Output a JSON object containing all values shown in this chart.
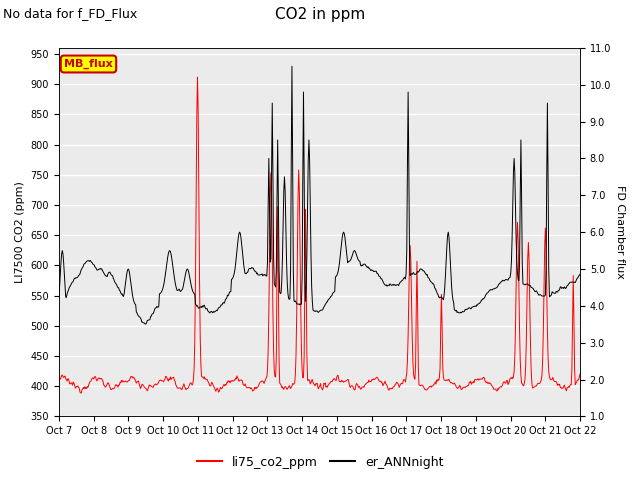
{
  "title": "CO2 in ppm",
  "subtitle": "No data for f_FD_Flux",
  "ylabel_left": "LI7500 CO2 (ppm)",
  "ylabel_right": "FD Chamber flux",
  "ylim_left": [
    350,
    960
  ],
  "ylim_right": [
    1.0,
    11.0
  ],
  "yticks_left": [
    350,
    400,
    450,
    500,
    550,
    600,
    650,
    700,
    750,
    800,
    850,
    900,
    950
  ],
  "yticks_right": [
    1.0,
    2.0,
    3.0,
    4.0,
    5.0,
    6.0,
    7.0,
    8.0,
    9.0,
    10.0,
    11.0
  ],
  "xlabel_ticks": [
    "Oct 7",
    "Oct 8",
    "Oct 9",
    "Oct 10",
    "Oct 11",
    "Oct 12",
    "Oct 13",
    "Oct 14",
    "Oct 15",
    "Oct 16",
    "Oct 17",
    "Oct 18",
    "Oct 19",
    "Oct 20",
    "Oct 21",
    "Oct 22"
  ],
  "line1_color": "#ff0000",
  "line2_color": "#000000",
  "line1_label": "li75_co2_ppm",
  "line2_label": "er_ANNnight",
  "legend_box_color": "#ffff00",
  "legend_box_label": "MB_flux",
  "background_color": "#ebebeb",
  "grid_color": "#ffffff",
  "fig_background": "#ffffff",
  "title_fontsize": 11,
  "subtitle_fontsize": 9,
  "axis_fontsize": 8,
  "tick_fontsize": 7
}
